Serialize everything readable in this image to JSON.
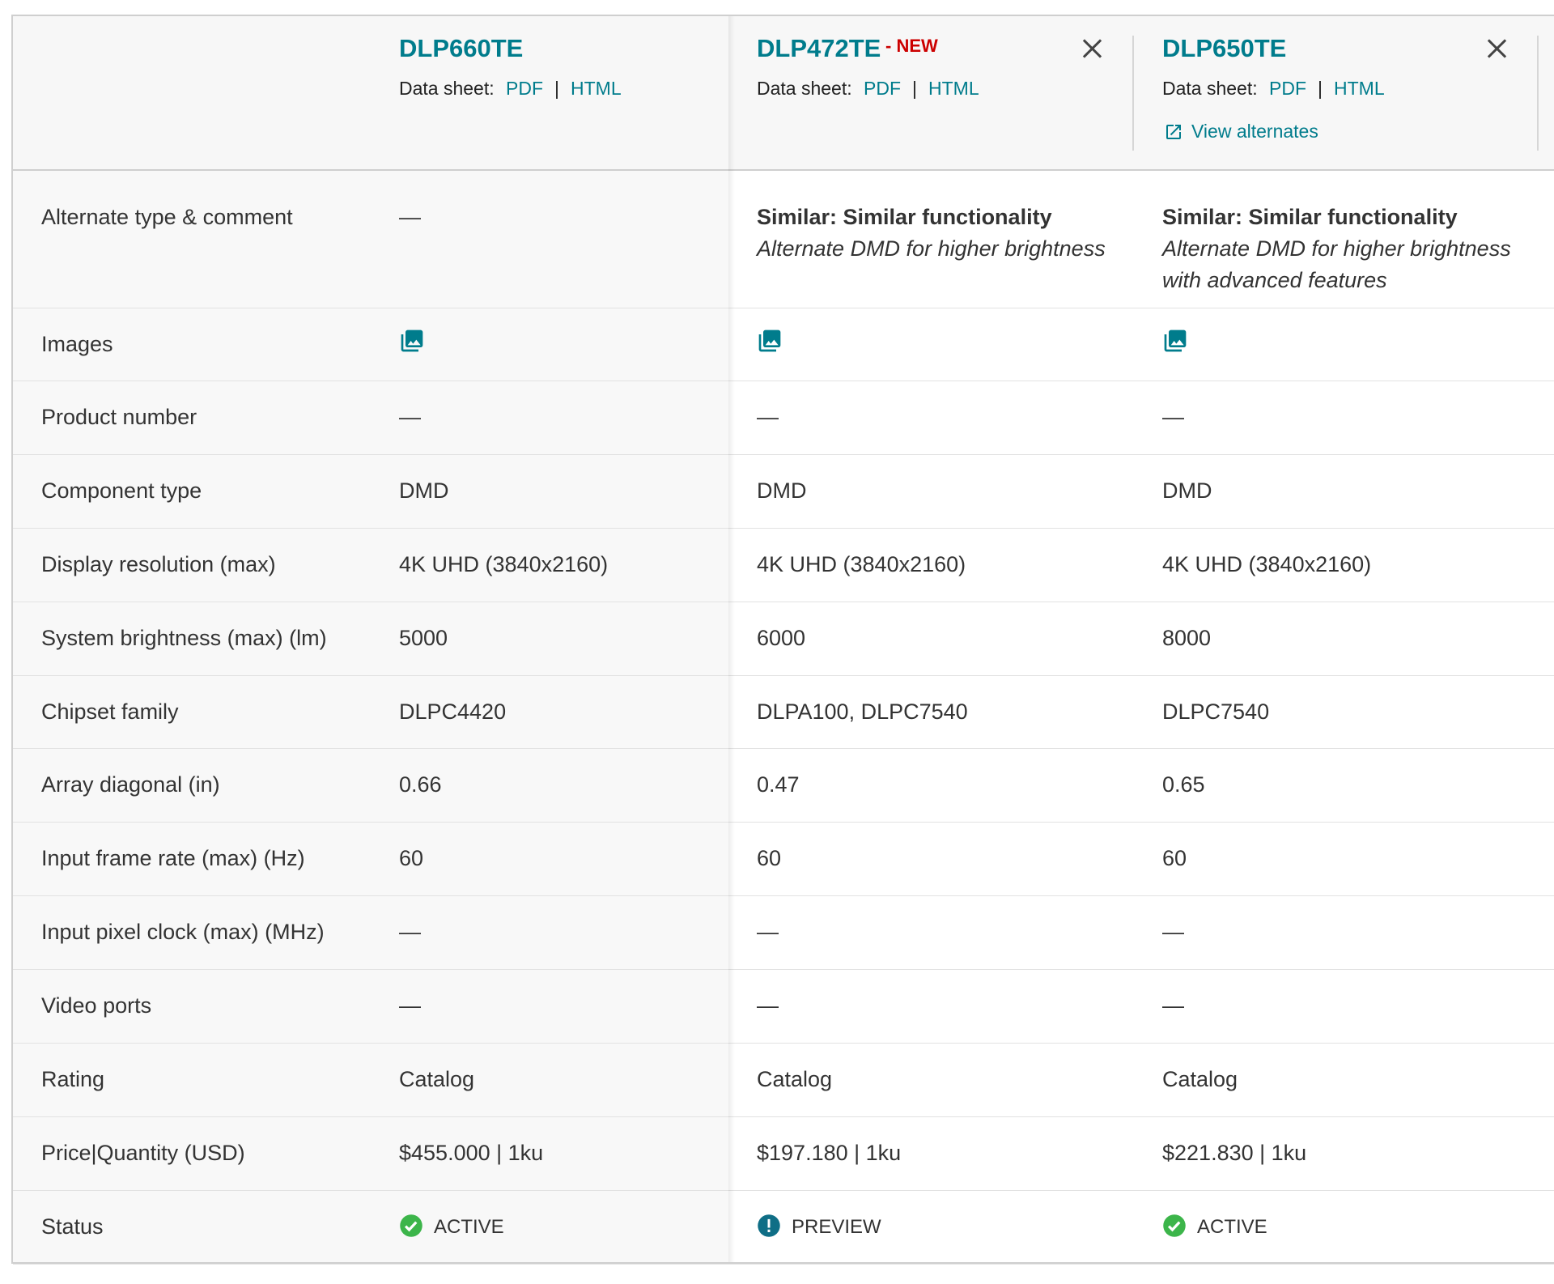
{
  "products": [
    {
      "name": "DLP660TE",
      "datasheet_label": "Data sheet:",
      "pdf": "PDF",
      "sep": "|",
      "html": "HTML"
    },
    {
      "name": "DLP472TE",
      "badge": "- NEW",
      "datasheet_label": "Data sheet:",
      "pdf": "PDF",
      "sep": "|",
      "html": "HTML"
    },
    {
      "name": "DLP650TE",
      "datasheet_label": "Data sheet:",
      "pdf": "PDF",
      "sep": "|",
      "html": "HTML",
      "view_alternates": "View alternates"
    }
  ],
  "rows": [
    {
      "label": "Alternate type & comment",
      "values": [
        {
          "text": "—"
        },
        {
          "heading": "Similar: Similar functionality",
          "comment": "Alternate DMD for higher brightness"
        },
        {
          "heading": "Similar: Similar functionality",
          "comment": "Alternate DMD for higher brightness with advanced features"
        }
      ]
    },
    {
      "label": "Images"
    },
    {
      "label": "Product number",
      "values": [
        "—",
        "—",
        "—"
      ]
    },
    {
      "label": "Component type",
      "values": [
        "DMD",
        "DMD",
        "DMD"
      ]
    },
    {
      "label": "Display resolution (max)",
      "values": [
        "4K UHD (3840x2160)",
        "4K UHD (3840x2160)",
        "4K UHD (3840x2160)"
      ]
    },
    {
      "label": "System brightness (max) (lm)",
      "values": [
        "5000",
        "6000",
        "8000"
      ]
    },
    {
      "label": "Chipset family",
      "values": [
        "DLPC4420",
        "DLPA100, DLPC7540",
        "DLPC7540"
      ]
    },
    {
      "label": "Array diagonal (in)",
      "values": [
        "0.66",
        "0.47",
        "0.65"
      ]
    },
    {
      "label": "Input frame rate (max) (Hz)",
      "values": [
        "60",
        "60",
        "60"
      ]
    },
    {
      "label": "Input pixel clock (max) (MHz)",
      "values": [
        "—",
        "—",
        "—"
      ]
    },
    {
      "label": "Video ports",
      "values": [
        "—",
        "—",
        "—"
      ]
    },
    {
      "label": "Rating",
      "values": [
        "Catalog",
        "Catalog",
        "Catalog"
      ]
    },
    {
      "label": "Price|Quantity (USD)",
      "values": [
        "$455.000 | 1ku",
        "$197.180 | 1ku",
        "$221.830 | 1ku"
      ]
    },
    {
      "label": "Status",
      "values": [
        "ACTIVE",
        "PREVIEW",
        "ACTIVE"
      ],
      "status": true
    }
  ]
}
